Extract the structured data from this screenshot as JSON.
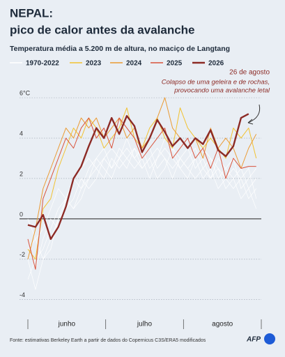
{
  "chart_data": {
    "type": "line",
    "title": [
      "NEPAL:",
      "pico de calor antes da avalanche"
    ],
    "subtitle": "Temperatura média a 5.200 m de altura, no maciço de Langtang",
    "annotation": {
      "title": "26 de agosto",
      "text": [
        "Colapso de uma geleira e de rochas,",
        "provocando uma avalanche letal"
      ]
    },
    "source": "Fonte: estimativas Berkeley Earth a partir de dados do Copernicus C3S/ERA5 modificados",
    "logo": "AFP",
    "categories": [
      "junho",
      "julho",
      "agosto"
    ],
    "x": [
      0,
      3,
      6,
      9,
      12,
      15,
      18,
      21,
      24,
      27,
      30,
      33,
      36,
      39,
      42,
      45,
      48,
      51,
      54,
      57,
      60,
      63,
      66,
      69,
      72,
      75,
      78,
      81,
      84,
      87,
      90
    ],
    "xlim": [
      0,
      92
    ],
    "ylim": [
      -4.7,
      6.35
    ],
    "yticks": [
      {
        "value": 6,
        "label": "6°C"
      },
      4,
      2,
      0,
      -2,
      -4
    ],
    "grid": true,
    "background_series": {
      "name": "1970-2022",
      "color": "#ffffff",
      "lines": [
        [
          -3,
          -2,
          -1.5,
          -0.5,
          0.5,
          1,
          0.5,
          1.5,
          2,
          2.5,
          2,
          3,
          2.5,
          3,
          3.5,
          2.5,
          3,
          3.5,
          3,
          2.5,
          3,
          3.5,
          2.5,
          3,
          2,
          2.5,
          2,
          1.5,
          2,
          1,
          1.5
        ],
        [
          -1,
          -2.5,
          -1,
          0,
          -0.5,
          1,
          2,
          1.5,
          2.5,
          3,
          3.5,
          2.5,
          3,
          4,
          3,
          3.5,
          2.5,
          3,
          4,
          3.5,
          3,
          2.5,
          3,
          3.5,
          3,
          2,
          2.5,
          3,
          1.5,
          2,
          2.5
        ],
        [
          -2,
          -3.5,
          -2,
          -1,
          0,
          0.5,
          1,
          2,
          1.5,
          2,
          3,
          2.5,
          3.5,
          3,
          2.5,
          3,
          3.5,
          2.5,
          3,
          2,
          3,
          2.5,
          2,
          2.5,
          3,
          2.5,
          1.5,
          2,
          2.5,
          1.5,
          0.5
        ],
        [
          0,
          -1,
          -0.5,
          0.5,
          1.5,
          1,
          2,
          2.5,
          3,
          2.5,
          3,
          3.5,
          3,
          2.5,
          3.5,
          3,
          2,
          3,
          3.5,
          3,
          2.5,
          3,
          3.5,
          2.5,
          2,
          3,
          2.5,
          2,
          1,
          1.5,
          2
        ],
        [
          -1.5,
          -1,
          -2,
          -1.5,
          0,
          1,
          0.5,
          1,
          2,
          3,
          2.5,
          2,
          3,
          3.5,
          3,
          2.5,
          3,
          2,
          2.5,
          3.5,
          2.5,
          2,
          3,
          2,
          2.5,
          1.5,
          2,
          2.5,
          2,
          2.5,
          1
        ]
      ]
    },
    "series": [
      {
        "name": "2023",
        "color": "#f2c230",
        "values": [
          -1.5,
          -2,
          0.5,
          1,
          2.5,
          3.5,
          4.5,
          4,
          5,
          4.5,
          3.5,
          4,
          4.5,
          5.5,
          4,
          3.5,
          4.5,
          5,
          4,
          3.5,
          5.5,
          4.5,
          4,
          3.5,
          4,
          3.5,
          3,
          4.5,
          4,
          4.5,
          3
        ]
      },
      {
        "name": "2024",
        "color": "#eb9a32",
        "values": [
          -2,
          -0.5,
          1.5,
          2.5,
          3.5,
          4.5,
          4,
          5,
          4.5,
          5,
          4,
          4.5,
          5,
          4,
          4.5,
          3.5,
          4,
          5,
          6,
          4.5,
          4,
          3.5,
          4,
          3,
          4.5,
          3.5,
          4,
          3.5,
          2.5,
          3.5,
          4.2
        ]
      },
      {
        "name": "2025",
        "color": "#d9523a",
        "values": [
          -1,
          -2.5,
          1,
          2,
          3,
          4,
          3.5,
          4.5,
          5,
          4,
          4.5,
          3.5,
          5,
          4.5,
          4,
          3,
          3.5,
          4,
          4.5,
          3,
          3.5,
          4,
          3,
          3.5,
          2.5,
          3.5,
          2,
          3,
          2.5,
          2.6,
          2.6
        ]
      },
      {
        "name": "2026",
        "color": "#8c2a25",
        "values": [
          -0.3,
          -0.4,
          0.2,
          -1,
          -0.4,
          0.6,
          2,
          2.6,
          3.6,
          4.5,
          4,
          5,
          4.2,
          5.1,
          4.6,
          3.3,
          4,
          4.9,
          4.3,
          3.6,
          4,
          3.5,
          4,
          3.7,
          4.4,
          3.4,
          3.1,
          3.6,
          5,
          5.2,
          null
        ]
      }
    ]
  }
}
